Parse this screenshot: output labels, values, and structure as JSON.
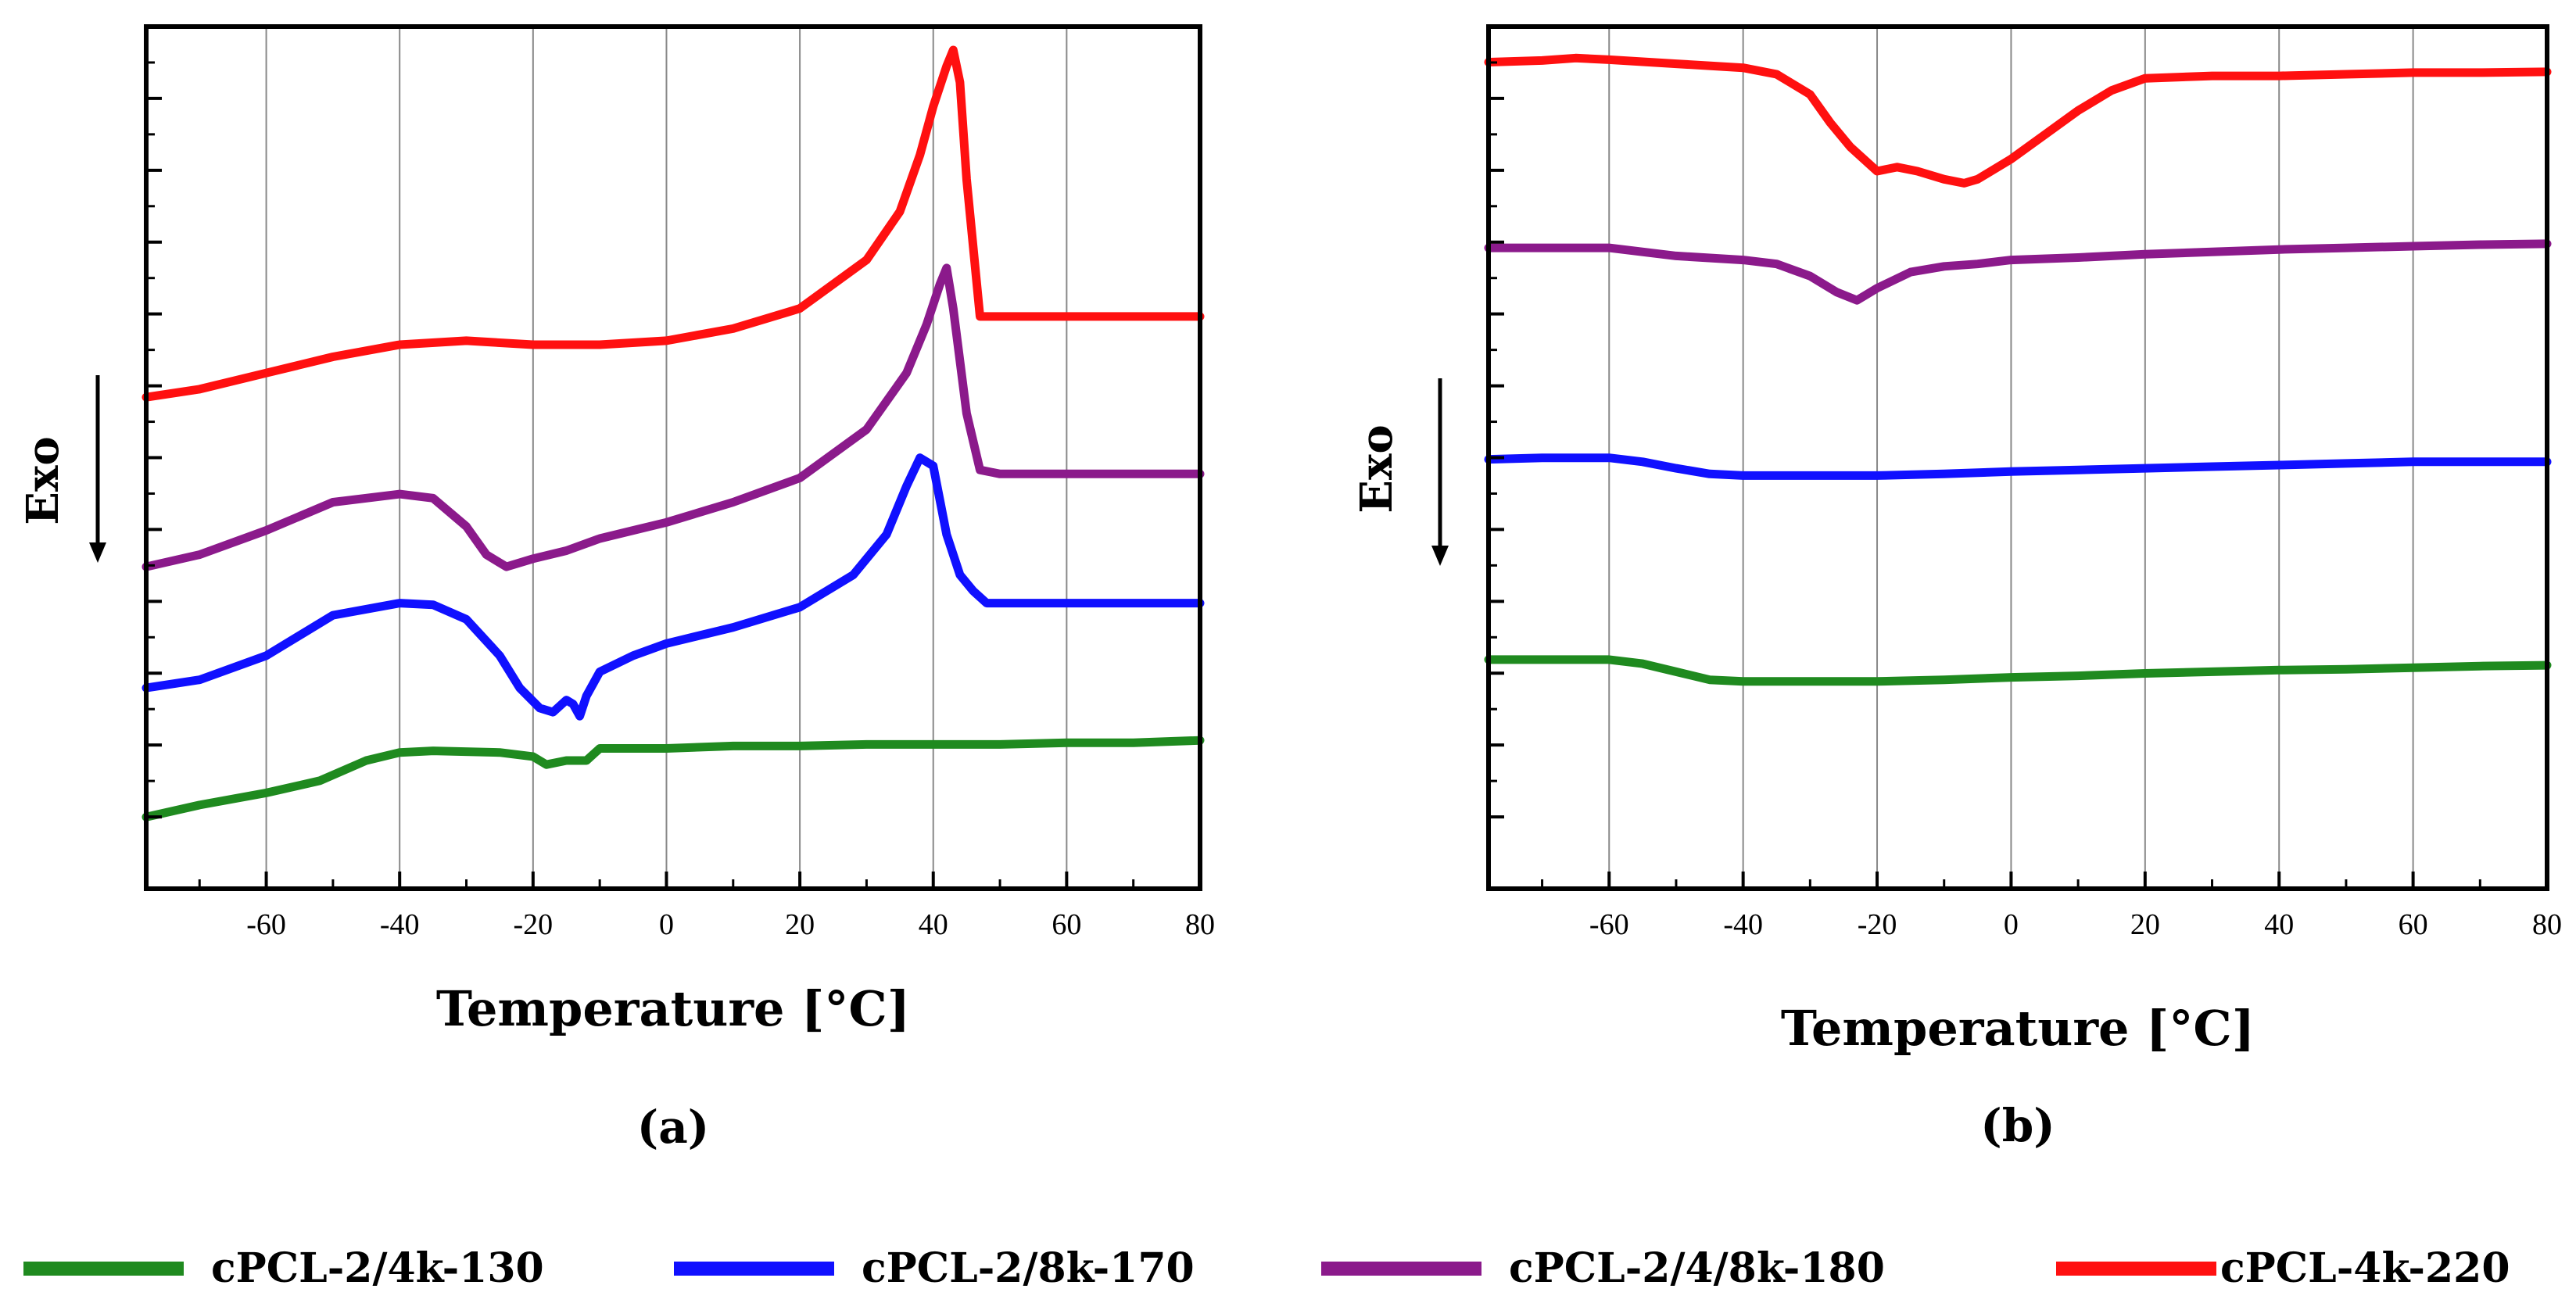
{
  "legend": [
    {
      "label": "cPCL-2/4k-130",
      "color": "#1f8a1f"
    },
    {
      "label": "cPCL-2/8k-170",
      "color": "#1010ff"
    },
    {
      "label": "cPCL-2/4/8k-180",
      "color": "#8b1a8b"
    },
    {
      "label": "cPCL-4k-220",
      "color": "#ff1010"
    }
  ],
  "chart_data": [
    {
      "type": "line",
      "panel_label": "(a)",
      "xlabel": "Temperature [°C]",
      "ylabel": "Exo",
      "ylabel_arrow": "down",
      "xlim": [
        -78,
        80
      ],
      "ylim": [
        0,
        100
      ],
      "xticks": [
        -60,
        -40,
        -20,
        0,
        20,
        40,
        60,
        80
      ],
      "grid": "vertical",
      "series": [
        {
          "name": "cPCL-2/4k-130",
          "color": "#1f8a1f",
          "x": [
            -78,
            -70,
            -60,
            -52,
            -45,
            -40,
            -35,
            -25,
            -20,
            -18,
            -15,
            -12,
            -10,
            0,
            10,
            20,
            30,
            40,
            50,
            60,
            70,
            80
          ],
          "y": [
            5,
            6.5,
            8,
            9.5,
            12,
            13,
            13.2,
            13,
            12.5,
            11.5,
            12,
            12,
            13.5,
            13.5,
            13.8,
            13.8,
            14,
            14,
            14,
            14.2,
            14.2,
            14.5
          ]
        },
        {
          "name": "cPCL-2/8k-170",
          "color": "#1010ff",
          "x": [
            -78,
            -70,
            -60,
            -50,
            -40,
            -35,
            -30,
            -25,
            -22,
            -19,
            -17,
            -15,
            -14,
            -13,
            -12,
            -10,
            -5,
            0,
            10,
            20,
            28,
            33,
            36,
            38,
            40,
            42,
            44,
            46,
            48,
            52,
            60,
            70,
            80
          ],
          "y": [
            21,
            22,
            25,
            30,
            31.5,
            31.3,
            29.5,
            25,
            21,
            18.5,
            18,
            19.5,
            19,
            17.5,
            20,
            23,
            25,
            26.5,
            28.5,
            31,
            35,
            40,
            46,
            49.5,
            48.5,
            40,
            35,
            33,
            31.5,
            31.5,
            31.5,
            31.5,
            31.5
          ]
        },
        {
          "name": "cPCL-2/4/8k-180",
          "color": "#8b1a8b",
          "x": [
            -78,
            -70,
            -60,
            -50,
            -40,
            -35,
            -30,
            -27,
            -24,
            -20,
            -15,
            -10,
            -5,
            0,
            10,
            20,
            30,
            36,
            39,
            41,
            42,
            43,
            45,
            47,
            50,
            60,
            70,
            80
          ],
          "y": [
            36,
            37.5,
            40.5,
            44,
            45,
            44.5,
            41,
            37.5,
            36,
            37,
            38,
            39.5,
            40.5,
            41.5,
            44,
            47,
            53,
            60,
            66,
            71,
            73,
            68,
            55,
            48,
            47.5,
            47.5,
            47.5,
            47.5
          ]
        },
        {
          "name": "cPCL-4k-220",
          "color": "#ff1010",
          "x": [
            -78,
            -70,
            -60,
            -50,
            -40,
            -30,
            -20,
            -10,
            0,
            10,
            20,
            30,
            35,
            38,
            40,
            42,
            43,
            44,
            45,
            47,
            50,
            60,
            70,
            80
          ],
          "y": [
            57,
            58,
            60,
            62,
            63.5,
            64,
            63.5,
            63.5,
            64,
            65.5,
            68,
            74,
            80,
            87,
            93,
            98,
            100,
            96,
            84,
            67,
            67,
            67,
            67,
            67
          ]
        }
      ]
    },
    {
      "type": "line",
      "panel_label": "(b)",
      "xlabel": "Temperature [°C]",
      "ylabel": "Exo",
      "ylabel_arrow": "down",
      "xlim": [
        -78,
        80
      ],
      "ylim": [
        0,
        100
      ],
      "xticks": [
        -60,
        -40,
        -20,
        0,
        20,
        40,
        60,
        80
      ],
      "grid": "vertical",
      "series": [
        {
          "name": "cPCL-2/4k-130",
          "color": "#1f8a1f",
          "x": [
            -78,
            -70,
            -60,
            -55,
            -50,
            -45,
            -40,
            -30,
            -20,
            -10,
            0,
            10,
            20,
            30,
            40,
            50,
            60,
            70,
            80
          ],
          "y": [
            24.5,
            24.5,
            24.5,
            24,
            23,
            22,
            21.8,
            21.8,
            21.8,
            22,
            22.3,
            22.5,
            22.8,
            23,
            23.2,
            23.3,
            23.5,
            23.7,
            23.8
          ]
        },
        {
          "name": "cPCL-2/8k-170",
          "color": "#1010ff",
          "x": [
            -78,
            -70,
            -60,
            -55,
            -50,
            -45,
            -40,
            -30,
            -20,
            -10,
            0,
            10,
            20,
            30,
            40,
            50,
            60,
            70,
            80
          ],
          "y": [
            49.3,
            49.5,
            49.5,
            49,
            48.2,
            47.5,
            47.3,
            47.3,
            47.3,
            47.5,
            47.8,
            48,
            48.2,
            48.4,
            48.6,
            48.8,
            49,
            49,
            49
          ]
        },
        {
          "name": "cPCL-2/4/8k-180",
          "color": "#8b1a8b",
          "x": [
            -78,
            -70,
            -60,
            -50,
            -40,
            -35,
            -30,
            -26,
            -23,
            -20,
            -15,
            -10,
            -5,
            0,
            10,
            20,
            30,
            40,
            50,
            60,
            70,
            80
          ],
          "y": [
            75.5,
            75.5,
            75.5,
            74.5,
            74,
            73.5,
            72,
            70,
            69,
            70.5,
            72.5,
            73.2,
            73.5,
            74,
            74.3,
            74.7,
            75,
            75.3,
            75.5,
            75.7,
            75.9,
            76
          ]
        },
        {
          "name": "cPCL-4k-220",
          "color": "#ff1010",
          "x": [
            -78,
            -70,
            -65,
            -60,
            -50,
            -40,
            -35,
            -30,
            -27,
            -24,
            -20,
            -17,
            -14,
            -10,
            -7,
            -5,
            0,
            5,
            10,
            15,
            20,
            30,
            40,
            50,
            60,
            70,
            80
          ],
          "y": [
            98.5,
            98.7,
            99,
            98.8,
            98.3,
            97.8,
            97,
            94.5,
            91,
            88,
            85,
            85.5,
            85,
            84,
            83.5,
            84,
            86.5,
            89.5,
            92.5,
            95,
            96.5,
            96.8,
            96.8,
            97,
            97.2,
            97.2,
            97.3
          ]
        }
      ]
    }
  ]
}
